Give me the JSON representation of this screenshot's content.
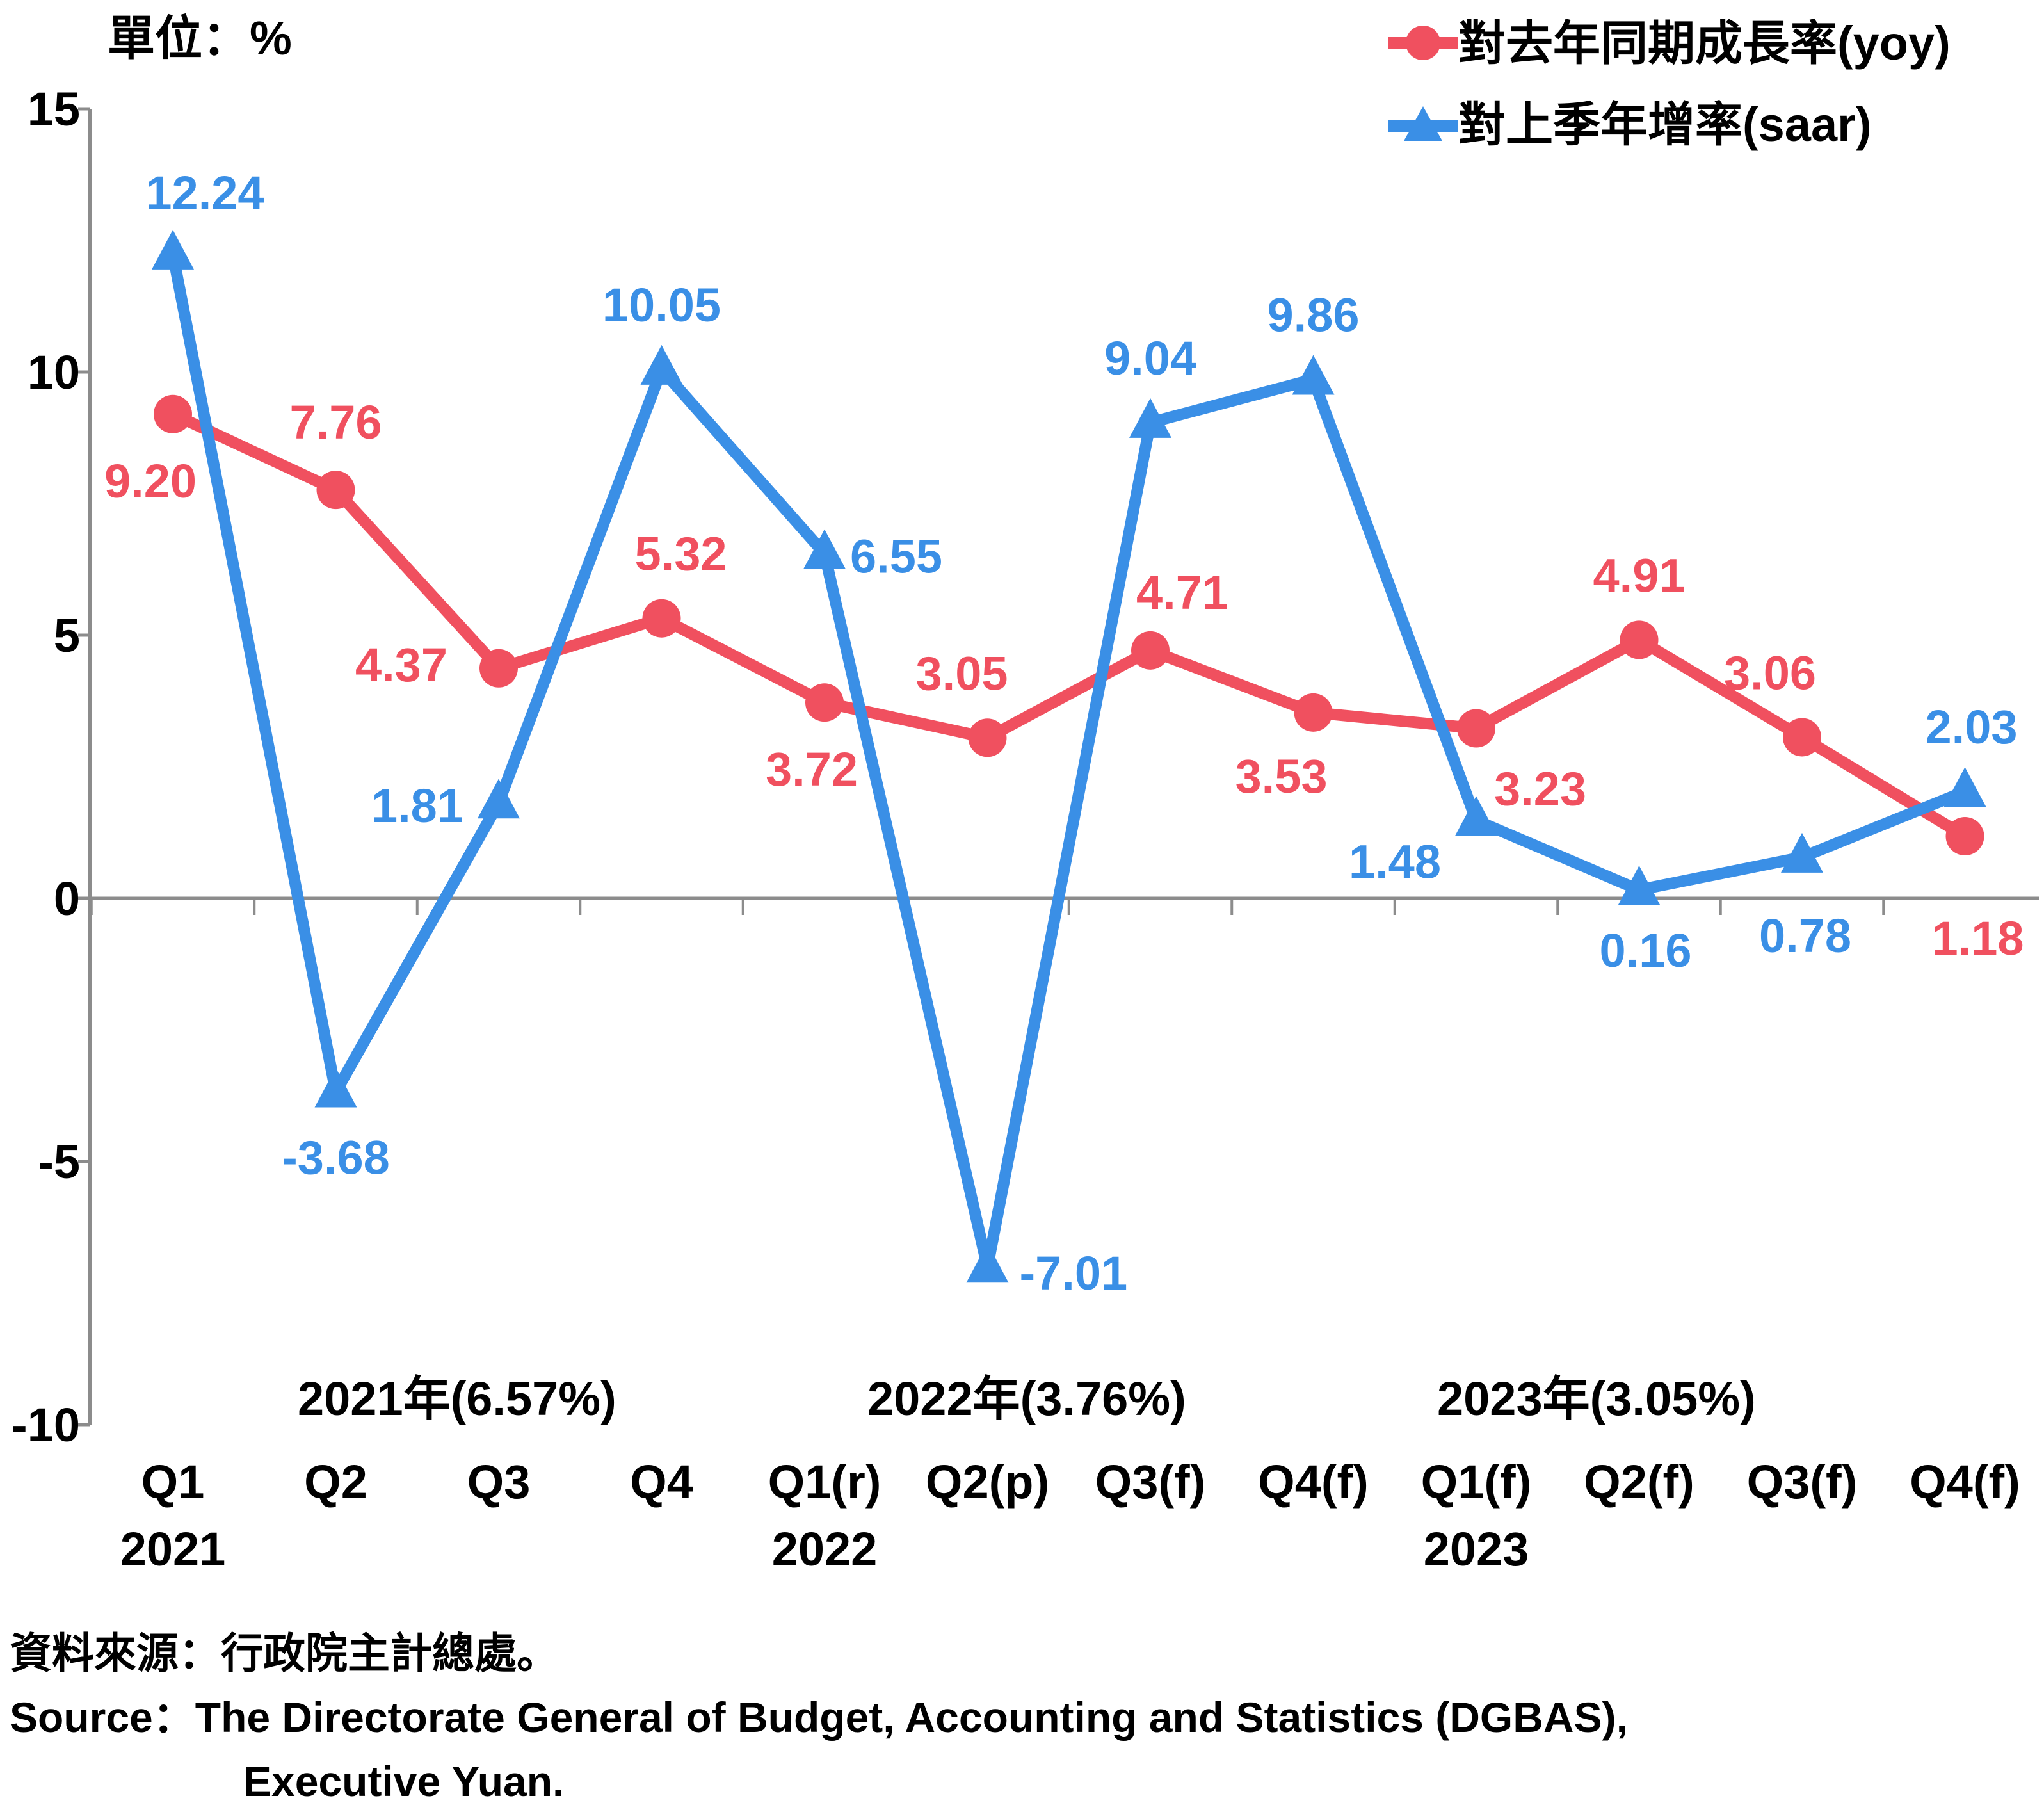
{
  "unit_label": "單位：%",
  "legend": [
    {
      "label": "對去年同期成長率(yoy)",
      "color": "#f0505f",
      "marker": "circle"
    },
    {
      "label": "對上季年增率(saar)",
      "color": "#3a8fe6",
      "marker": "triangle"
    }
  ],
  "annotations": [
    "2021年(6.57%)",
    "2022年(3.76%)",
    "2023年(3.05%)"
  ],
  "source": {
    "line1": "資料來源：行政院主計總處。",
    "line2": "Source：The Directorate General of Budget, Accounting and Statistics (DGBAS),",
    "line3": "Executive Yuan."
  },
  "chart_data": {
    "type": "line",
    "categories": [
      "Q1",
      "Q2",
      "Q3",
      "Q4",
      "Q1(r)",
      "Q2(p)",
      "Q3(f)",
      "Q4(f)",
      "Q1(f)",
      "Q2(f)",
      "Q3(f)",
      "Q4(f)"
    ],
    "years": [
      {
        "label": "2021",
        "at_category": 0
      },
      {
        "label": "2022",
        "at_category": 4
      },
      {
        "label": "2023",
        "at_category": 8
      }
    ],
    "ylim": [
      -10,
      15
    ],
    "yticks": [
      -10,
      -5,
      0,
      5,
      10,
      15
    ],
    "ytick_labels": [
      "-10",
      "-5",
      "0",
      "5",
      "10",
      "15"
    ],
    "grid": false,
    "legend_position": "top-right",
    "series": [
      {
        "name": "對去年同期成長率(yoy)",
        "color": "#f0505f",
        "marker": "circle",
        "values": [
          9.2,
          7.76,
          4.37,
          5.32,
          3.72,
          3.05,
          4.71,
          3.53,
          3.23,
          4.91,
          3.06,
          1.18
        ],
        "labels": [
          "9.20",
          "7.76",
          "4.37",
          "5.32",
          "3.72",
          "3.05",
          "4.71",
          "3.53",
          "3.23",
          "4.91",
          "3.06",
          "1.18"
        ]
      },
      {
        "name": "對上季年增率(saar)",
        "color": "#3a8fe6",
        "marker": "triangle",
        "values": [
          12.24,
          -3.68,
          1.81,
          10.05,
          6.55,
          -7.01,
          9.04,
          9.86,
          1.48,
          0.16,
          0.78,
          2.03
        ],
        "labels": [
          "12.24",
          "-3.68",
          "1.81",
          "10.05",
          "6.55",
          "-7.01",
          "9.04",
          "9.86",
          "1.48",
          "0.16",
          "0.78",
          "2.03"
        ]
      }
    ]
  }
}
